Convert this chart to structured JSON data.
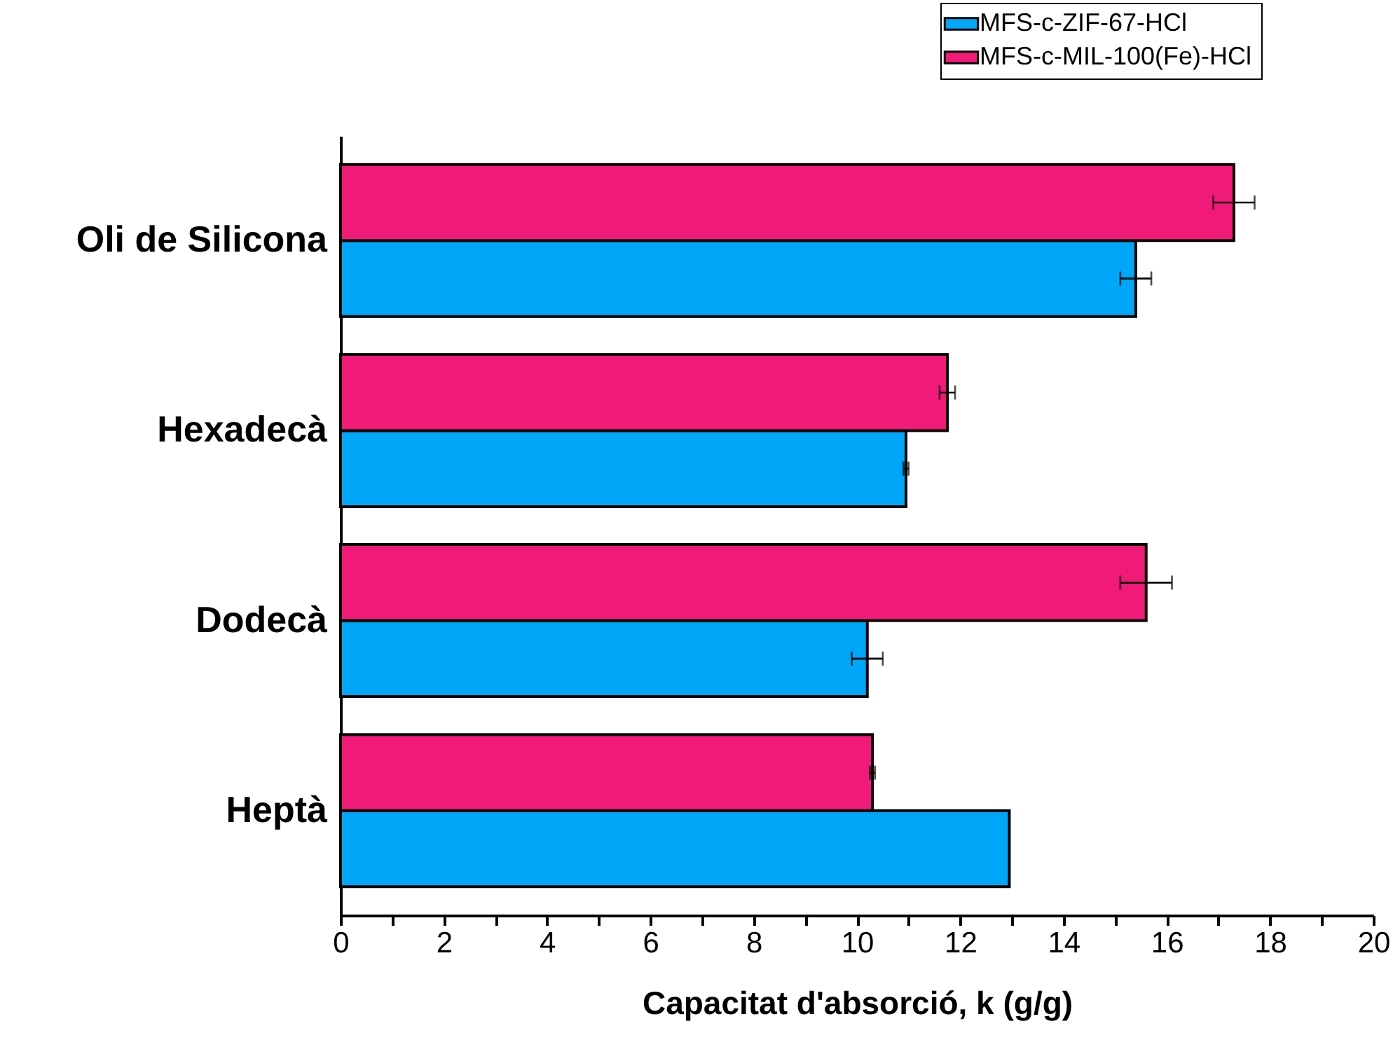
{
  "chart_data": {
    "type": "bar",
    "orientation": "horizontal",
    "xlabel": "Capacitat d'absorció, k (g/g)",
    "categories": [
      "Oli de Silicona",
      "Hexadecà",
      "Dodecà",
      "Heptà"
    ],
    "series": [
      {
        "name": "MFS-c-ZIF-67-HCl",
        "color": "#00a6f7",
        "values": [
          15.4,
          10.95,
          10.2,
          12.95
        ],
        "errors": [
          0.3,
          0.05,
          0.3,
          null
        ]
      },
      {
        "name": "MFS-c-MIL-100(Fe)-HCl",
        "color": "#f21a78",
        "values": [
          17.3,
          11.75,
          15.6,
          10.3
        ],
        "errors": [
          0.4,
          0.15,
          0.5,
          0.05
        ]
      }
    ],
    "xlim": [
      0,
      20
    ],
    "xticks": [
      0,
      {
        "value": 1,
        "label": null
      },
      2,
      {
        "value": 3,
        "label": null
      },
      4,
      {
        "value": 5,
        "label": null
      },
      6,
      {
        "value": 7,
        "label": null
      },
      8,
      {
        "value": 9,
        "label": null
      },
      10,
      {
        "value": 11,
        "label": null
      },
      12,
      {
        "value": 13,
        "label": null
      },
      14,
      {
        "value": 15,
        "label": null
      },
      16,
      {
        "value": 17,
        "label": null
      },
      18,
      {
        "value": 19,
        "label": null
      },
      20
    ],
    "grid": false,
    "legend": "top right"
  }
}
